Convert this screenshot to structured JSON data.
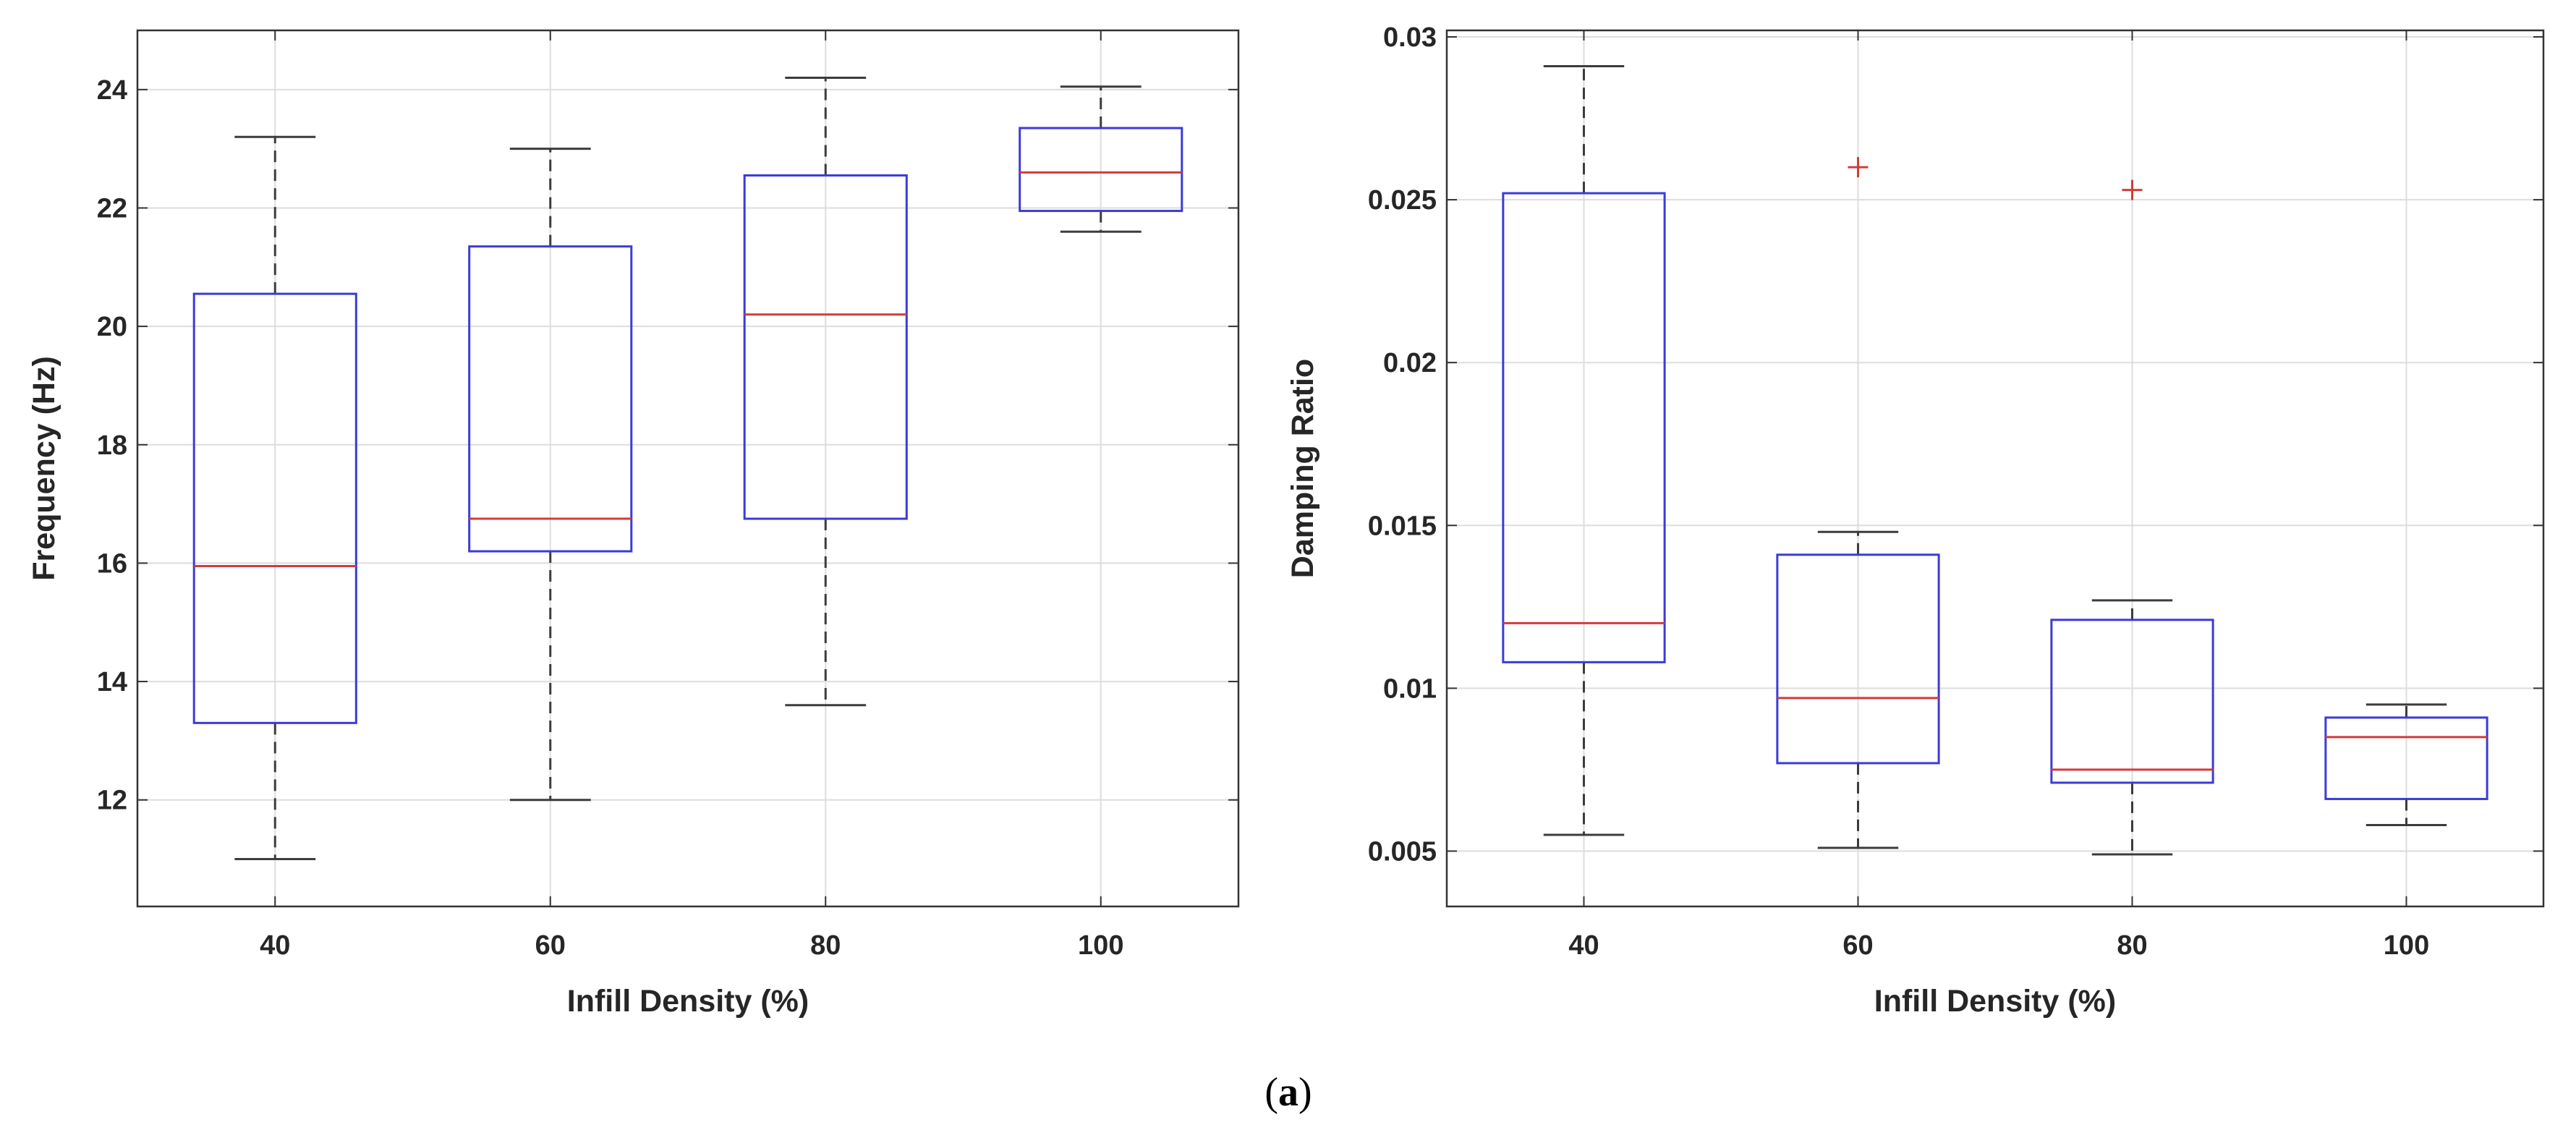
{
  "chart_data": [
    {
      "type": "box",
      "xlabel": "Infill Density (%)",
      "ylabel": "Frequency (Hz)",
      "categories": [
        "40",
        "60",
        "80",
        "100"
      ],
      "ylim": [
        10.2,
        25
      ],
      "yticks": [
        12,
        14,
        16,
        18,
        20,
        22,
        24
      ],
      "ytick_labels": [
        "12",
        "14",
        "16",
        "18",
        "20",
        "22",
        "24"
      ],
      "grid": true,
      "boxes": [
        {
          "category": "40",
          "whisker_low": 11.0,
          "q1": 13.3,
          "median": 15.95,
          "q3": 20.55,
          "whisker_high": 23.2,
          "outliers": []
        },
        {
          "category": "60",
          "whisker_low": 12.0,
          "q1": 16.2,
          "median": 16.75,
          "q3": 21.35,
          "whisker_high": 23.0,
          "outliers": []
        },
        {
          "category": "80",
          "whisker_low": 13.6,
          "q1": 16.75,
          "median": 20.2,
          "q3": 22.55,
          "whisker_high": 24.2,
          "outliers": []
        },
        {
          "category": "100",
          "whisker_low": 21.6,
          "q1": 21.95,
          "median": 22.6,
          "q3": 23.35,
          "whisker_high": 24.05,
          "outliers": []
        }
      ]
    },
    {
      "type": "box",
      "xlabel": "Infill Density (%)",
      "ylabel": "Damping Ratio",
      "categories": [
        "40",
        "60",
        "80",
        "100"
      ],
      "ylim": [
        0.0033,
        0.0302
      ],
      "yticks": [
        0.005,
        0.01,
        0.015,
        0.02,
        0.025,
        0.03
      ],
      "ytick_labels": [
        "0.005",
        "0.01",
        "0.015",
        "0.02",
        "0.025",
        "0.03"
      ],
      "grid": true,
      "boxes": [
        {
          "category": "40",
          "whisker_low": 0.0055,
          "q1": 0.0108,
          "median": 0.012,
          "q3": 0.0252,
          "whisker_high": 0.0291,
          "outliers": []
        },
        {
          "category": "60",
          "whisker_low": 0.0051,
          "q1": 0.0077,
          "median": 0.0097,
          "q3": 0.0141,
          "whisker_high": 0.0148,
          "outliers": [
            0.026
          ]
        },
        {
          "category": "80",
          "whisker_low": 0.0049,
          "q1": 0.0071,
          "median": 0.0075,
          "q3": 0.0121,
          "whisker_high": 0.0127,
          "outliers": [
            0.0253
          ]
        },
        {
          "category": "100",
          "whisker_low": 0.0058,
          "q1": 0.0066,
          "median": 0.0085,
          "q3": 0.0091,
          "whisker_high": 0.0095,
          "outliers": []
        }
      ]
    }
  ],
  "caption": {
    "open": "(",
    "letter": "a",
    "close": ")"
  },
  "colors": {
    "box": "#3b3bd9",
    "median": "#d23b3b",
    "whisker": "#3c3c3c",
    "grid": "#dddddd",
    "axis": "#333333",
    "outlier": "#d23b3b"
  }
}
